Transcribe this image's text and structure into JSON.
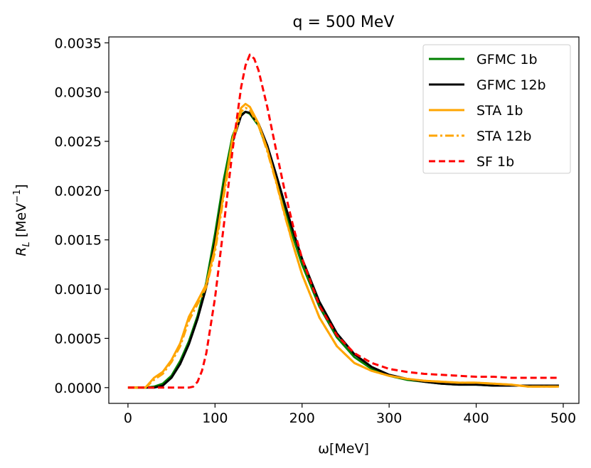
{
  "chart_data": {
    "type": "line",
    "title": "q = 500 MeV",
    "xlabel": "ω[MeV]",
    "ylabel": "R_L [MeV⁻¹]",
    "ylabel_main": "R",
    "ylabel_sub": "L",
    "ylabel_unit": " [MeV",
    "ylabel_exp": "−1",
    "ylabel_close": "]",
    "xlim": [
      -22,
      518
    ],
    "ylim": [
      -0.00016,
      0.00356
    ],
    "xticks": [
      0,
      100,
      200,
      300,
      400,
      500
    ],
    "xtick_labels": [
      "0",
      "100",
      "200",
      "300",
      "400",
      "500"
    ],
    "yticks": [
      0.0,
      0.0005,
      0.001,
      0.0015,
      0.002,
      0.0025,
      0.003,
      0.0035
    ],
    "ytick_labels": [
      "0.0000",
      "0.0005",
      "0.0010",
      "0.0015",
      "0.0020",
      "0.0025",
      "0.0030",
      "0.0035"
    ],
    "legend_position": "top-right",
    "series": [
      {
        "name": "GFMC 1b",
        "color": "#008000",
        "style": "solid",
        "x": [
          0,
          20,
          30,
          40,
          50,
          60,
          70,
          80,
          90,
          100,
          110,
          120,
          130,
          135,
          140,
          150,
          160,
          170,
          180,
          190,
          200,
          220,
          240,
          260,
          280,
          300,
          320,
          340,
          360,
          380,
          400,
          420,
          440,
          460,
          480,
          495
        ],
        "y": [
          0,
          0,
          1e-05,
          4e-05,
          0.00012,
          0.00027,
          0.00047,
          0.00073,
          0.00107,
          0.00156,
          0.00211,
          0.00255,
          0.00277,
          0.0028,
          0.00278,
          0.00266,
          0.00242,
          0.00213,
          0.00182,
          0.00152,
          0.00125,
          0.00082,
          0.00051,
          0.00031,
          0.00019,
          0.00012,
          8e-05,
          6e-05,
          4e-05,
          3e-05,
          3e-05,
          2e-05,
          2e-05,
          2e-05,
          2e-05,
          2e-05
        ]
      },
      {
        "name": "GFMC 12b",
        "color": "#000000",
        "style": "solid",
        "x": [
          0,
          20,
          30,
          40,
          50,
          60,
          70,
          80,
          90,
          100,
          110,
          120,
          130,
          135,
          140,
          150,
          160,
          170,
          180,
          190,
          200,
          220,
          240,
          260,
          280,
          300,
          320,
          340,
          360,
          380,
          400,
          420,
          440,
          460,
          480,
          495
        ],
        "y": [
          0,
          0,
          0,
          2e-05,
          0.0001,
          0.00024,
          0.00044,
          0.0007,
          0.00102,
          0.00148,
          0.00202,
          0.00249,
          0.00276,
          0.0028,
          0.00279,
          0.00268,
          0.00246,
          0.00217,
          0.00187,
          0.00158,
          0.00131,
          0.00087,
          0.00055,
          0.00034,
          0.00021,
          0.00013,
          9e-05,
          6e-05,
          4e-05,
          3e-05,
          3e-05,
          2e-05,
          2e-05,
          2e-05,
          2e-05,
          2e-05
        ]
      },
      {
        "name": "STA 1b",
        "color": "#FFA500",
        "style": "solid",
        "x": [
          0,
          20,
          30,
          40,
          50,
          60,
          70,
          80,
          90,
          100,
          110,
          120,
          130,
          135,
          140,
          150,
          160,
          170,
          180,
          190,
          200,
          220,
          240,
          260,
          280,
          300,
          320,
          340,
          360,
          380,
          400,
          420,
          440,
          460,
          480,
          495
        ],
        "y": [
          0,
          0,
          0.0001,
          0.00016,
          0.00028,
          0.00045,
          0.00072,
          0.00088,
          0.00105,
          0.00142,
          0.00198,
          0.00252,
          0.00284,
          0.00288,
          0.00285,
          0.00268,
          0.00242,
          0.0021,
          0.00176,
          0.00144,
          0.00115,
          0.00071,
          0.00042,
          0.00025,
          0.00017,
          0.00012,
          9e-05,
          7e-05,
          6e-05,
          5e-05,
          5e-05,
          4e-05,
          3e-05,
          1e-05,
          1e-05,
          1e-05
        ]
      },
      {
        "name": "STA 12b",
        "color": "#FFA500",
        "style": "dashdot",
        "x": [
          0,
          20,
          30,
          40,
          50,
          60,
          70,
          80,
          90,
          100,
          110,
          120,
          130,
          135,
          140,
          150,
          160,
          170,
          180,
          190,
          200,
          220,
          240,
          260,
          280,
          300,
          320,
          340,
          360,
          380,
          400,
          420,
          440,
          460,
          480,
          495
        ],
        "y": [
          0,
          0,
          8e-05,
          0.00014,
          0.00026,
          0.00042,
          0.00068,
          0.00085,
          0.00102,
          0.00138,
          0.00194,
          0.00248,
          0.0028,
          0.00284,
          0.00282,
          0.00266,
          0.0024,
          0.00209,
          0.00175,
          0.00144,
          0.00115,
          0.00071,
          0.00042,
          0.00025,
          0.00017,
          0.00012,
          9e-05,
          7e-05,
          6e-05,
          5e-05,
          5e-05,
          4e-05,
          3e-05,
          1e-05,
          1e-05,
          1e-05
        ]
      },
      {
        "name": "SF 1b",
        "color": "#FF0000",
        "style": "dashed",
        "x": [
          0,
          70,
          75,
          80,
          85,
          90,
          100,
          110,
          120,
          130,
          135,
          140,
          145,
          150,
          160,
          170,
          180,
          190,
          200,
          220,
          240,
          260,
          280,
          300,
          320,
          340,
          360,
          380,
          400,
          420,
          440,
          460,
          480,
          495
        ],
        "y": [
          0,
          0,
          1e-05,
          6e-05,
          0.00017,
          0.00035,
          0.00091,
          0.00164,
          0.0024,
          0.00305,
          0.00327,
          0.00338,
          0.00334,
          0.00322,
          0.00285,
          0.00242,
          0.002,
          0.00163,
          0.00131,
          0.00083,
          0.00053,
          0.00035,
          0.00025,
          0.00019,
          0.00016,
          0.00014,
          0.00013,
          0.00012,
          0.00011,
          0.00011,
          0.0001,
          0.0001,
          0.0001,
          0.0001
        ]
      }
    ]
  }
}
